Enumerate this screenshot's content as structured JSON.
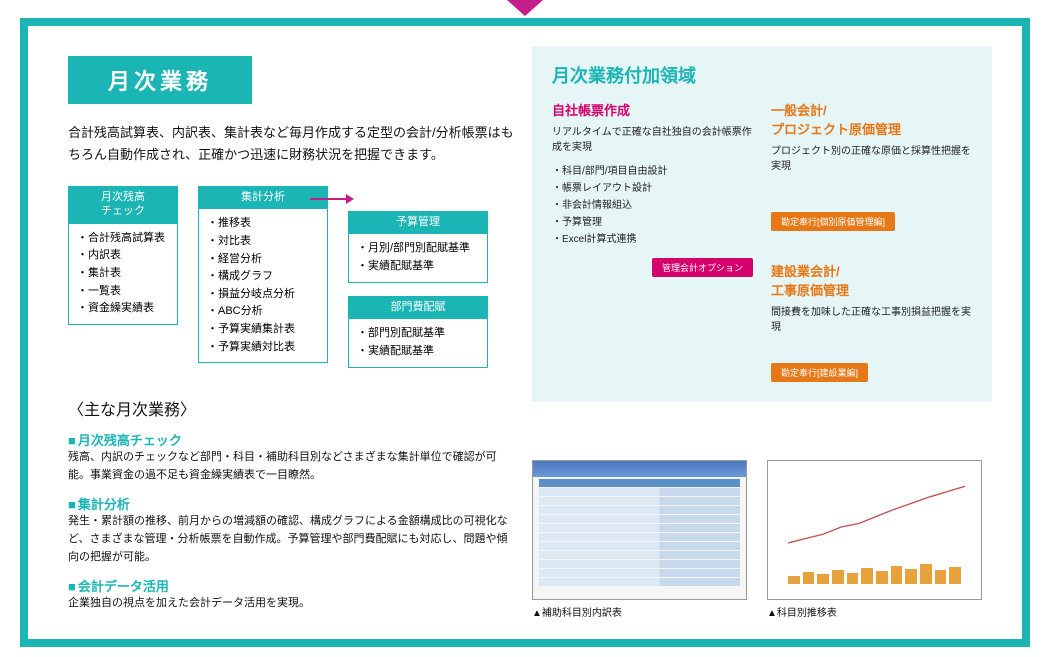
{
  "title": "月次業務",
  "intro": "合計残高試算表、内訳表、集計表など毎月作成する定型の会計/分析帳票はもちろん自動作成され、正確かつ迅速に財務状況を把握できます。",
  "boxes": {
    "b1": {
      "title": "月次残高\nチェック",
      "items": [
        "合計残高試算表",
        "内訳表",
        "集計表",
        "一覧表",
        "資金繰実績表"
      ]
    },
    "b2": {
      "title": "集計分析",
      "items": [
        "推移表",
        "対比表",
        "経営分析",
        "構成グラフ",
        "損益分岐点分析",
        "ABC分析",
        "予算実績集計表",
        "予算実績対比表"
      ]
    },
    "b3": {
      "title": "予算管理",
      "items": [
        "月別/部門別配賦基準",
        "実績配賦基準"
      ]
    },
    "b4": {
      "title": "部門費配賦",
      "items": [
        "部門別配賦基準",
        "実績配賦基準"
      ]
    }
  },
  "main_sub": "〈主な月次業務〉",
  "sections": [
    {
      "h": "月次残高チェック",
      "p": "残高、内訳のチェックなど部門・科目・補助科目別などさまざまな集計単位で確認が可能。事業資金の過不足も資金繰実績表で一目瞭然。"
    },
    {
      "h": "集計分析",
      "p": "発生・累計額の推移、前月からの増減額の確認、構成グラフによる金額構成比の可視化など、さまざまな管理・分析帳票を自動作成。予算管理や部門費配賦にも対応し、問題や傾向の把握が可能。"
    },
    {
      "h": "会計データ活用",
      "p": "企業独自の視点を加えた会計データ活用を実現。"
    }
  ],
  "panel": {
    "title": "月次業務付加領域",
    "left": {
      "title": "自社帳票作成",
      "desc": "リアルタイムで正確な自社独自の会計帳票作成を実現",
      "items": [
        "科目/部門/項目自由設計",
        "帳票レイアウト設計",
        "非会計情報組込",
        "予算管理",
        "Excel計算式連携"
      ],
      "badge": "管理会計オプション"
    },
    "right1": {
      "title": "一般会計/\nプロジェクト原価管理",
      "desc": "プロジェクト別の正確な原価と採算性把握を実現",
      "badge": "勘定奉行[個別原価管理編]"
    },
    "right2": {
      "title": "建設業会計/\n工事原価管理",
      "desc": "間接費を加味した正確な工事別損益把握を実現",
      "badge": "勘定奉行[建設業編]"
    }
  },
  "shots": {
    "s1": "▲補助科目別内訳表",
    "s2": "▲科目別推移表"
  },
  "colors": {
    "teal": "#1cb5b5",
    "pink": "#d6006c",
    "orange": "#e67817",
    "magenta": "#c41e8a"
  },
  "chart_bars": [
    8,
    12,
    10,
    14,
    11,
    16,
    13,
    18,
    15,
    20,
    14,
    17
  ]
}
